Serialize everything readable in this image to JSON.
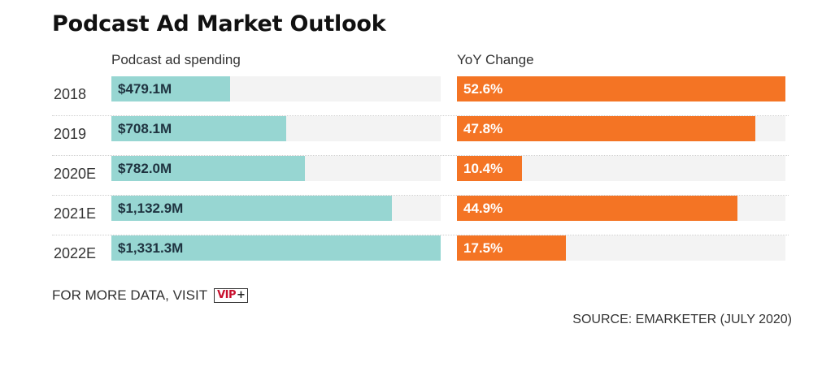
{
  "title": "Podcast Ad Market Outlook",
  "headers": {
    "spending": "Podcast ad spending",
    "yoy": "YoY Change"
  },
  "footer": {
    "cta": "FOR MORE DATA, VISIT",
    "badge_vip": "VIP",
    "badge_plus": "+"
  },
  "source": "SOURCE: EMARKETER (JULY 2020)",
  "colors": {
    "spending_bar": "#97d6d2",
    "yoy_bar": "#f47424",
    "track": "#f3f3f3"
  },
  "chart_data": {
    "type": "bar",
    "title": "Podcast Ad Market Outlook",
    "categories": [
      "2018",
      "2019",
      "2020E",
      "2021E",
      "2022E"
    ],
    "series": [
      {
        "name": "Podcast ad spending",
        "values": [
          479.1,
          708.1,
          782.0,
          1132.9,
          1331.3
        ],
        "labels": [
          "$479.1M",
          "$708.1M",
          "$782.0M",
          "$1,132.9M",
          "$1,331.3M"
        ],
        "max": 1331.3
      },
      {
        "name": "YoY Change",
        "values": [
          52.6,
          47.8,
          10.4,
          44.9,
          17.5
        ],
        "labels": [
          "52.6%",
          "47.8%",
          "10.4%",
          "44.9%",
          "17.5%"
        ],
        "max": 52.6
      }
    ]
  }
}
